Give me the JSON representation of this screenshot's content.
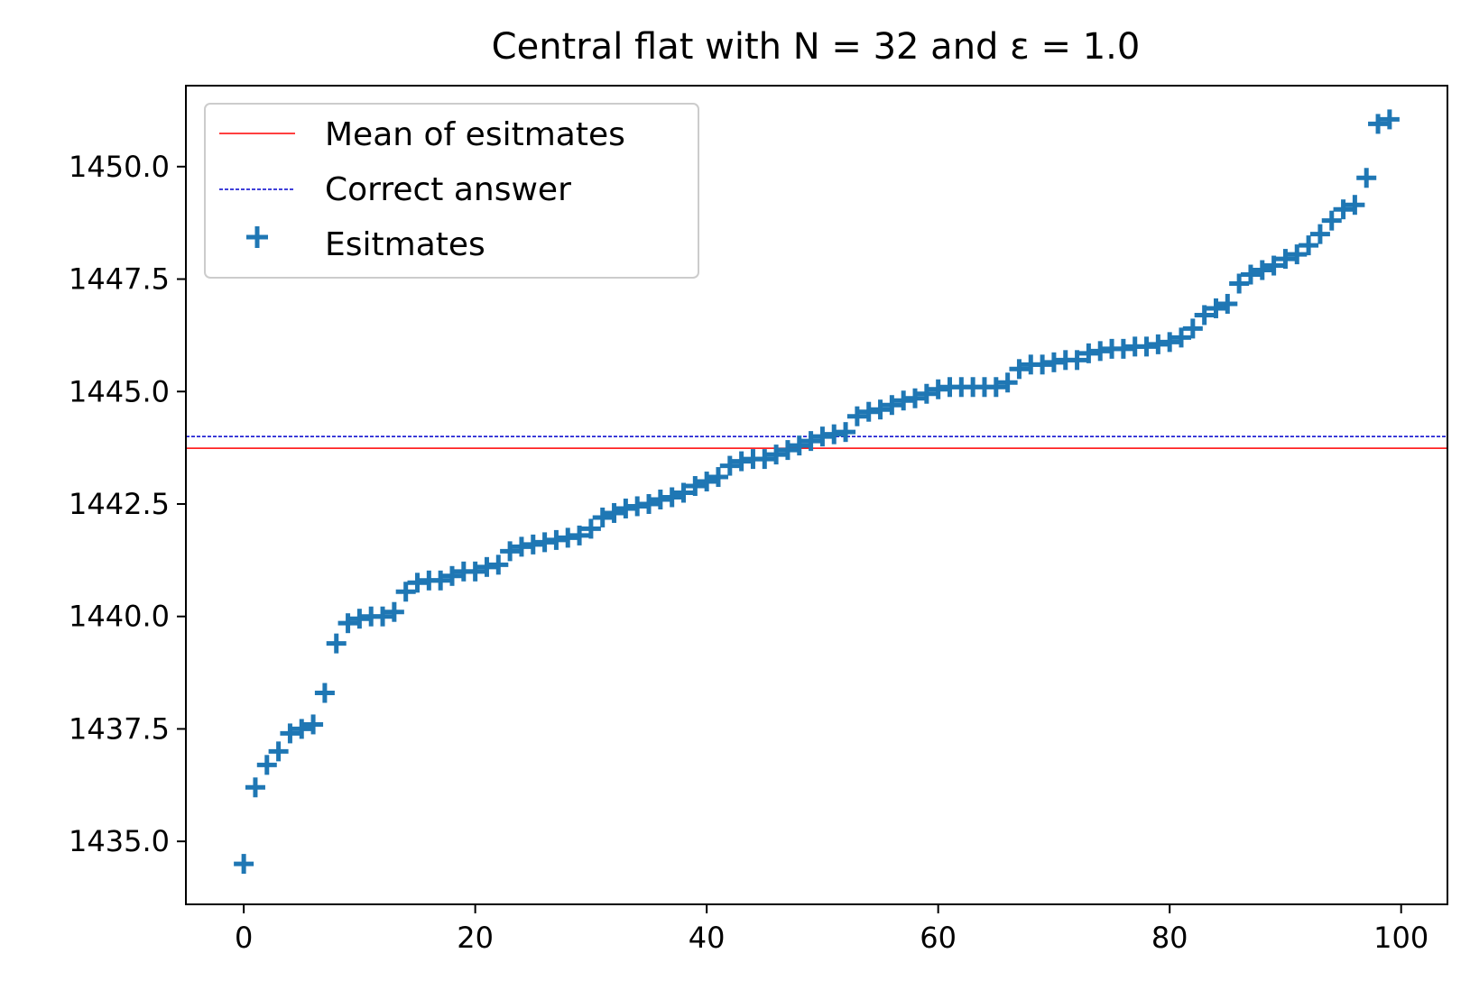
{
  "chart_data": {
    "type": "scatter",
    "title": "Central flat with N = 32 and ε = 1.0",
    "xlabel": "",
    "ylabel": "",
    "xlim": [
      -5,
      104
    ],
    "ylim": [
      1433.6,
      1451.8
    ],
    "grid": false,
    "legend_position": "top-left",
    "xticks": [
      0,
      20,
      40,
      60,
      80,
      100
    ],
    "xtick_labels": [
      "0",
      "20",
      "40",
      "60",
      "80",
      "100"
    ],
    "yticks": [
      1435.0,
      1437.5,
      1440.0,
      1442.5,
      1445.0,
      1447.5,
      1450.0
    ],
    "ytick_labels": [
      "1435.0",
      "1437.5",
      "1440.0",
      "1442.5",
      "1445.0",
      "1447.5",
      "1450.0"
    ],
    "hlines": [
      {
        "name": "Mean of esitmates",
        "y": 1443.74,
        "color": "#ff0000",
        "style": "solid"
      },
      {
        "name": "Correct answer",
        "y": 1444.0,
        "color": "#0000cc",
        "style": "dashed"
      }
    ],
    "series": [
      {
        "name": "Esitmates",
        "marker": "+",
        "color": "#1f77b4",
        "x": [
          0,
          1,
          2,
          3,
          4,
          5,
          6,
          7,
          8,
          9,
          10,
          11,
          12,
          13,
          14,
          15,
          16,
          17,
          18,
          19,
          20,
          21,
          22,
          23,
          24,
          25,
          26,
          27,
          28,
          29,
          30,
          31,
          32,
          33,
          34,
          35,
          36,
          37,
          38,
          39,
          40,
          41,
          42,
          43,
          44,
          45,
          46,
          47,
          48,
          49,
          50,
          51,
          52,
          53,
          54,
          55,
          56,
          57,
          58,
          59,
          60,
          61,
          62,
          63,
          64,
          65,
          66,
          67,
          68,
          69,
          70,
          71,
          72,
          73,
          74,
          75,
          76,
          77,
          78,
          79,
          80,
          81,
          82,
          83,
          84,
          85,
          86,
          87,
          88,
          89,
          90,
          91,
          92,
          93,
          94,
          95,
          96,
          97,
          98,
          99
        ],
        "values": [
          1434.5,
          1436.2,
          1436.7,
          1437.0,
          1437.4,
          1437.5,
          1437.6,
          1438.3,
          1439.4,
          1439.85,
          1439.95,
          1440.0,
          1440.0,
          1440.1,
          1440.55,
          1440.75,
          1440.8,
          1440.8,
          1440.9,
          1441.0,
          1441.0,
          1441.1,
          1441.15,
          1441.45,
          1441.55,
          1441.6,
          1441.65,
          1441.7,
          1441.75,
          1441.8,
          1441.95,
          1442.2,
          1442.3,
          1442.4,
          1442.45,
          1442.5,
          1442.6,
          1442.65,
          1442.75,
          1442.9,
          1443.0,
          1443.1,
          1443.35,
          1443.45,
          1443.5,
          1443.5,
          1443.6,
          1443.7,
          1443.8,
          1443.9,
          1444.0,
          1444.05,
          1444.1,
          1444.45,
          1444.55,
          1444.6,
          1444.7,
          1444.8,
          1444.85,
          1444.95,
          1445.05,
          1445.1,
          1445.1,
          1445.1,
          1445.1,
          1445.1,
          1445.2,
          1445.5,
          1445.6,
          1445.6,
          1445.65,
          1445.7,
          1445.7,
          1445.85,
          1445.9,
          1445.95,
          1445.95,
          1446.0,
          1446.0,
          1446.05,
          1446.1,
          1446.2,
          1446.4,
          1446.7,
          1446.85,
          1446.95,
          1447.4,
          1447.6,
          1447.7,
          1447.8,
          1447.95,
          1448.05,
          1448.25,
          1448.5,
          1448.8,
          1449.05,
          1449.15,
          1449.75,
          1450.95,
          1451.05
        ]
      }
    ]
  }
}
